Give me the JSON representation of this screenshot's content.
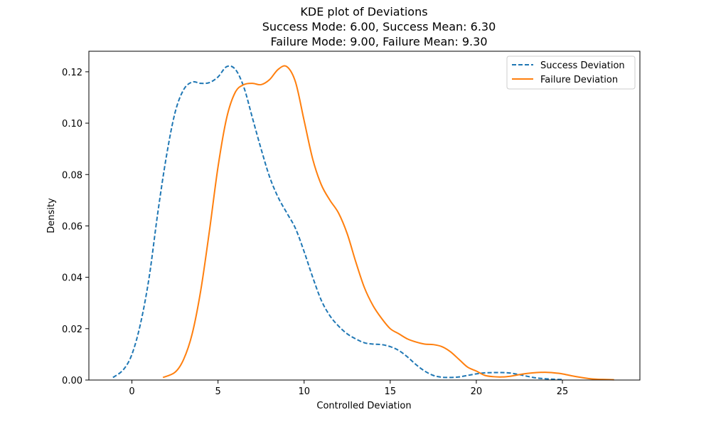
{
  "chart_data": {
    "type": "line",
    "title": [
      "KDE plot of Deviations",
      "Success Mode: 6.00, Success Mean: 6.30",
      "Failure Mode: 9.00, Failure Mean: 9.30"
    ],
    "xlabel": "Controlled Deviation",
    "ylabel": "Density",
    "xlim": [
      -2.5,
      29.5
    ],
    "ylim": [
      0,
      0.128
    ],
    "xticks": [
      0,
      5,
      10,
      15,
      20,
      25
    ],
    "yticks": [
      0.0,
      0.02,
      0.04,
      0.06,
      0.08,
      0.1,
      0.12
    ],
    "ytick_labels": [
      "0.00",
      "0.02",
      "0.04",
      "0.06",
      "0.08",
      "0.10",
      "0.12"
    ],
    "legend_position": "top-right",
    "grid": false,
    "series": [
      {
        "name": "Success Deviation",
        "color": "#1f77b4",
        "style": "dashed",
        "points": [
          [
            -1.1,
            0.001
          ],
          [
            -0.5,
            0.004
          ],
          [
            0,
            0.01
          ],
          [
            0.5,
            0.022
          ],
          [
            1.0,
            0.04
          ],
          [
            1.5,
            0.065
          ],
          [
            2.0,
            0.087
          ],
          [
            2.5,
            0.104
          ],
          [
            3.0,
            0.113
          ],
          [
            3.5,
            0.116
          ],
          [
            4.0,
            0.1155
          ],
          [
            4.5,
            0.1158
          ],
          [
            5.0,
            0.118
          ],
          [
            5.5,
            0.122
          ],
          [
            6.0,
            0.121
          ],
          [
            6.5,
            0.114
          ],
          [
            7.0,
            0.102
          ],
          [
            7.5,
            0.09
          ],
          [
            8.0,
            0.079
          ],
          [
            8.5,
            0.071
          ],
          [
            9.0,
            0.065
          ],
          [
            9.5,
            0.059
          ],
          [
            10.0,
            0.05
          ],
          [
            10.5,
            0.04
          ],
          [
            11.0,
            0.031
          ],
          [
            11.5,
            0.025
          ],
          [
            12.0,
            0.021
          ],
          [
            12.5,
            0.018
          ],
          [
            13.0,
            0.016
          ],
          [
            13.5,
            0.0145
          ],
          [
            14.0,
            0.014
          ],
          [
            14.5,
            0.0138
          ],
          [
            15.0,
            0.013
          ],
          [
            15.5,
            0.0115
          ],
          [
            16.0,
            0.009
          ],
          [
            16.5,
            0.006
          ],
          [
            17.0,
            0.0035
          ],
          [
            17.5,
            0.0018
          ],
          [
            18.0,
            0.0011
          ],
          [
            18.5,
            0.001
          ],
          [
            19.0,
            0.0012
          ],
          [
            19.5,
            0.0018
          ],
          [
            20.0,
            0.0024
          ],
          [
            20.5,
            0.0028
          ],
          [
            21.0,
            0.0029
          ],
          [
            21.5,
            0.0029
          ],
          [
            22.0,
            0.0027
          ],
          [
            22.5,
            0.0021
          ],
          [
            23.0,
            0.0014
          ],
          [
            23.5,
            0.0008
          ],
          [
            24.0,
            0.0005
          ],
          [
            24.5,
            0.0003
          ],
          [
            25.0,
            0.0002
          ]
        ]
      },
      {
        "name": "Failure Deviation",
        "color": "#ff7f0e",
        "style": "solid",
        "points": [
          [
            1.8,
            0.001
          ],
          [
            2.5,
            0.003
          ],
          [
            3.0,
            0.008
          ],
          [
            3.5,
            0.018
          ],
          [
            4.0,
            0.035
          ],
          [
            4.5,
            0.058
          ],
          [
            5.0,
            0.083
          ],
          [
            5.5,
            0.102
          ],
          [
            6.0,
            0.112
          ],
          [
            6.5,
            0.115
          ],
          [
            7.0,
            0.1155
          ],
          [
            7.5,
            0.115
          ],
          [
            8.0,
            0.117
          ],
          [
            8.5,
            0.121
          ],
          [
            9.0,
            0.122
          ],
          [
            9.5,
            0.116
          ],
          [
            10.0,
            0.101
          ],
          [
            10.5,
            0.086
          ],
          [
            11.0,
            0.076
          ],
          [
            11.5,
            0.07
          ],
          [
            12.0,
            0.065
          ],
          [
            12.5,
            0.057
          ],
          [
            13.0,
            0.046
          ],
          [
            13.5,
            0.036
          ],
          [
            14.0,
            0.029
          ],
          [
            14.5,
            0.024
          ],
          [
            15.0,
            0.02
          ],
          [
            15.5,
            0.018
          ],
          [
            16.0,
            0.016
          ],
          [
            16.5,
            0.0148
          ],
          [
            17.0,
            0.014
          ],
          [
            17.5,
            0.0138
          ],
          [
            18.0,
            0.013
          ],
          [
            18.5,
            0.011
          ],
          [
            19.0,
            0.008
          ],
          [
            19.5,
            0.005
          ],
          [
            20.0,
            0.0035
          ],
          [
            20.5,
            0.0018
          ],
          [
            21.0,
            0.0013
          ],
          [
            21.5,
            0.0012
          ],
          [
            22.0,
            0.0015
          ],
          [
            22.5,
            0.0021
          ],
          [
            23.0,
            0.0026
          ],
          [
            23.5,
            0.0029
          ],
          [
            24.0,
            0.003
          ],
          [
            24.5,
            0.0028
          ],
          [
            25.0,
            0.0024
          ],
          [
            25.5,
            0.0017
          ],
          [
            26.0,
            0.0011
          ],
          [
            26.5,
            0.0006
          ],
          [
            27.0,
            0.0003
          ],
          [
            27.5,
            0.0002
          ],
          [
            28.0,
            0.0001
          ]
        ]
      }
    ]
  }
}
